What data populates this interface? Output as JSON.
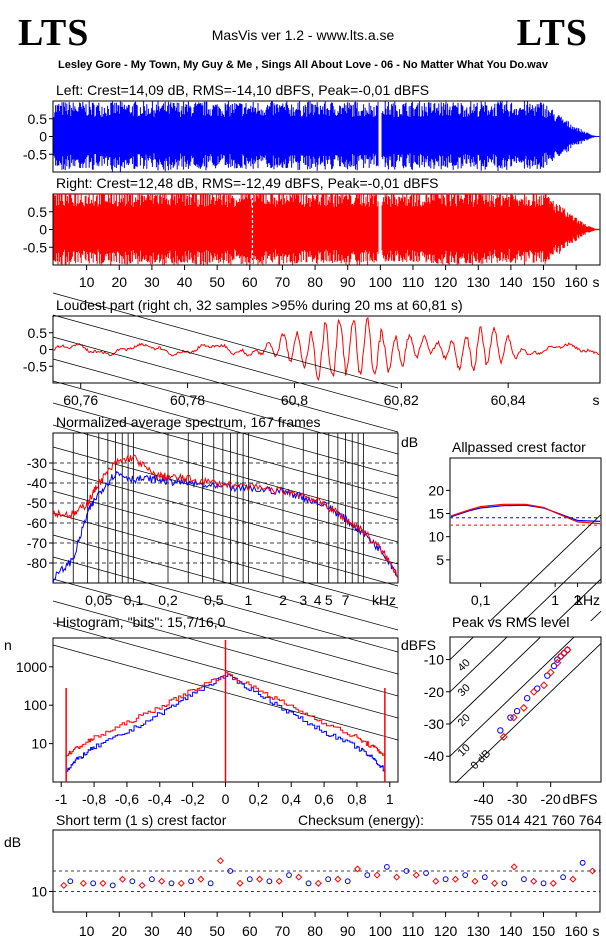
{
  "header": {
    "logo_left": "LTS",
    "logo_right": "LTS",
    "app_title": "MasVis ver 1.2 - www.lts.a.se",
    "file_title": "Lesley Gore - My Town, My Guy & Me , Sings All About Love - 06 - No Matter What You Do.wav"
  },
  "colors": {
    "left": "#0000ff",
    "right": "#ff0000",
    "axis": "#000000",
    "background": "#ffffff"
  },
  "chart_data": [
    {
      "type": "line",
      "title": "Left: Crest=14,09 dB, RMS=-14,10 dBFS, Peak=-0,01 dBFS",
      "channel": "left",
      "y_ticks": [
        "0.5",
        "0",
        "-0.5"
      ],
      "ylim": [
        -1,
        1
      ],
      "xlim": [
        0,
        167
      ],
      "gap_seconds": [
        99.5,
        100.5
      ],
      "fade_out": [
        150,
        167
      ]
    },
    {
      "type": "line",
      "title": "Right: Crest=12,48 dB, RMS=-12,49 dBFS, Peak=-0,01 dBFS",
      "channel": "right",
      "y_ticks": [
        "0.5",
        "0",
        "-0.5"
      ],
      "ylim": [
        -1,
        1
      ],
      "xlim": [
        0,
        167
      ],
      "gap_seconds": [
        99.5,
        100.5
      ],
      "marker_at": 60.81,
      "x_ticks": [
        "10",
        "20",
        "30",
        "40",
        "50",
        "60",
        "70",
        "80",
        "90",
        "100",
        "110",
        "120",
        "130",
        "140",
        "150",
        "160"
      ],
      "x_unit": "s"
    },
    {
      "type": "line",
      "title": "Loudest part (right ch, 32 samples >95% during 20 ms at 60,81 s)",
      "channel": "right",
      "y_ticks": [
        "0.5",
        "0",
        "-0.5"
      ],
      "ylim": [
        -1,
        1
      ],
      "xlim": [
        60.755,
        60.857
      ],
      "x_ticks": [
        "60,76",
        "60,78",
        "60,8",
        "60,82",
        "60,84"
      ],
      "x_unit": "s"
    },
    {
      "type": "line",
      "title": "Normalized average spectrum, 167 frames",
      "ylabel": "dB",
      "y_ticks": [
        "-30",
        "-40",
        "-50",
        "-60",
        "-70",
        "-80"
      ],
      "ylim": [
        -90,
        -15
      ],
      "x_scale": "log",
      "x_ticks": [
        "0,05",
        "0,1",
        "0,2",
        "0,5",
        "1",
        "2",
        "3",
        "4",
        "5",
        "7"
      ],
      "x_unit": "kHz",
      "xlim_khz": [
        0.02,
        20
      ],
      "series": [
        {
          "channel": "left",
          "x": [
            0.02,
            0.03,
            0.04,
            0.05,
            0.07,
            0.1,
            0.15,
            0.2,
            0.3,
            0.5,
            1,
            2,
            3,
            5,
            7,
            10,
            15,
            20
          ],
          "y": [
            -88,
            -78,
            -55,
            -45,
            -35,
            -38,
            -38,
            -39,
            -40,
            -42,
            -43,
            -44,
            -47,
            -52,
            -58,
            -65,
            -75,
            -86
          ]
        },
        {
          "channel": "right",
          "x": [
            0.02,
            0.03,
            0.04,
            0.05,
            0.07,
            0.1,
            0.15,
            0.2,
            0.3,
            0.5,
            1,
            2,
            3,
            5,
            7,
            10,
            15,
            20
          ],
          "y": [
            -55,
            -56,
            -50,
            -40,
            -30,
            -27,
            -36,
            -37,
            -38,
            -40,
            -42,
            -44,
            -46,
            -52,
            -58,
            -64,
            -75,
            -86
          ]
        }
      ]
    },
    {
      "type": "line",
      "title": "Allpassed crest factor",
      "ylabel": "dB",
      "y_ticks": [
        "20",
        "15",
        "10",
        "5"
      ],
      "ylim": [
        0,
        27
      ],
      "x_scale": "log",
      "x_ticks": [
        "0,1",
        "1",
        "2"
      ],
      "x_unit": "kHz",
      "xlim_khz": [
        0.04,
        4
      ],
      "reference_lines": [
        {
          "channel": "left",
          "value": 14.1
        },
        {
          "channel": "right",
          "value": 12.5
        }
      ],
      "series": [
        {
          "channel": "left",
          "x": [
            0.04,
            0.07,
            0.1,
            0.2,
            0.4,
            0.7,
            1,
            2,
            4
          ],
          "y": [
            14.3,
            15.6,
            16.2,
            16.7,
            16.8,
            16.2,
            15.3,
            13.5,
            13.3
          ]
        },
        {
          "channel": "right",
          "x": [
            0.04,
            0.07,
            0.1,
            0.2,
            0.4,
            0.7,
            1,
            2,
            4
          ],
          "y": [
            14.5,
            15.8,
            16.5,
            17.0,
            17.0,
            16.3,
            15.2,
            13.2,
            12.8
          ]
        }
      ]
    },
    {
      "type": "line",
      "title": "Histogram, \"bits\": 15,7/16,0",
      "ylabel": "n",
      "y_scale": "log",
      "y_ticks": [
        "1000",
        "100",
        "10"
      ],
      "x_ticks": [
        "-1",
        "-0,8",
        "-0,6",
        "-0,4",
        "-0,2",
        "0",
        "0,2",
        "0,4",
        "0,6",
        "0,8",
        "1"
      ],
      "xlim": [
        -1.05,
        1.05
      ],
      "series": [
        {
          "channel": "left",
          "x": [
            -0.97,
            -0.9,
            -0.8,
            -0.6,
            -0.4,
            -0.2,
            0,
            0.2,
            0.4,
            0.6,
            0.8,
            0.9,
            0.97
          ],
          "y": [
            2,
            4,
            8,
            20,
            60,
            200,
            600,
            200,
            60,
            20,
            8,
            4,
            2
          ]
        },
        {
          "channel": "right",
          "x": [
            -0.97,
            -0.9,
            -0.8,
            -0.6,
            -0.4,
            -0.2,
            0,
            0.2,
            0.4,
            0.6,
            0.8,
            0.9,
            0.97
          ],
          "y": [
            5,
            8,
            14,
            35,
            90,
            250,
            650,
            250,
            90,
            35,
            14,
            8,
            5
          ]
        }
      ]
    },
    {
      "type": "scatter",
      "title": "Peak vs RMS level",
      "ylabel": "dBFS",
      "xlabel": "dBFS",
      "y_ticks": [
        "-10",
        "-20",
        "-30",
        "-40"
      ],
      "x_ticks": [
        "-40",
        "-30",
        "-20"
      ],
      "diagonal_labels": [
        "40",
        "30",
        "20",
        "10",
        "0 dB"
      ],
      "series": [
        {
          "channel": "left",
          "x": [
            -35,
            -32,
            -30,
            -27,
            -24,
            -21,
            -19,
            -18,
            -17,
            -16,
            -15
          ],
          "y": [
            -32,
            -28,
            -26,
            -22,
            -19,
            -15,
            -12,
            -10,
            -9,
            -8,
            -7
          ]
        },
        {
          "channel": "right",
          "x": [
            -34,
            -31,
            -28,
            -25,
            -22,
            -20,
            -18,
            -17,
            -16,
            -15
          ],
          "y": [
            -34,
            -28,
            -25,
            -20,
            -18,
            -14,
            -11,
            -9,
            -8,
            -7
          ]
        }
      ]
    },
    {
      "type": "scatter",
      "title": "Short term (1 s) crest factor",
      "ylabel": "dB",
      "y_ticks": [
        "10"
      ],
      "checksum_label": "Checksum (energy):",
      "checksum_value": "755 014 421 760 764",
      "xlim": [
        0,
        167
      ],
      "x_ticks": [
        "10",
        "20",
        "30",
        "40",
        "50",
        "60",
        "70",
        "80",
        "90",
        "100",
        "110",
        "120",
        "130",
        "140",
        "150",
        "160"
      ],
      "x_unit": "s",
      "series": [
        {
          "channel": "left",
          "x": [
            5,
            12,
            18,
            24,
            30,
            36,
            42,
            48,
            54,
            60,
            66,
            72,
            78,
            84,
            90,
            96,
            102,
            108,
            114,
            120,
            126,
            132,
            138,
            144,
            150,
            156,
            162
          ],
          "y": [
            12.5,
            12,
            11.5,
            12.5,
            13,
            12,
            12.5,
            12,
            15,
            13,
            12.5,
            14,
            12,
            13,
            12.5,
            14,
            16,
            15,
            14.5,
            13,
            14,
            13.5,
            12,
            13,
            12,
            13.5,
            17
          ]
        },
        {
          "channel": "right",
          "x": [
            3,
            9,
            15,
            21,
            27,
            33,
            39,
            45,
            51,
            57,
            63,
            69,
            75,
            81,
            87,
            93,
            99,
            105,
            111,
            117,
            123,
            129,
            135,
            141,
            147,
            153,
            159,
            165
          ],
          "y": [
            11.5,
            12,
            12,
            13,
            11.5,
            12.5,
            12,
            13,
            17.5,
            12,
            13,
            12.5,
            13.5,
            12,
            13,
            15.5,
            14,
            13.5,
            14,
            12.5,
            13,
            12.5,
            12,
            16,
            12.5,
            12,
            13,
            15
          ]
        }
      ]
    }
  ]
}
